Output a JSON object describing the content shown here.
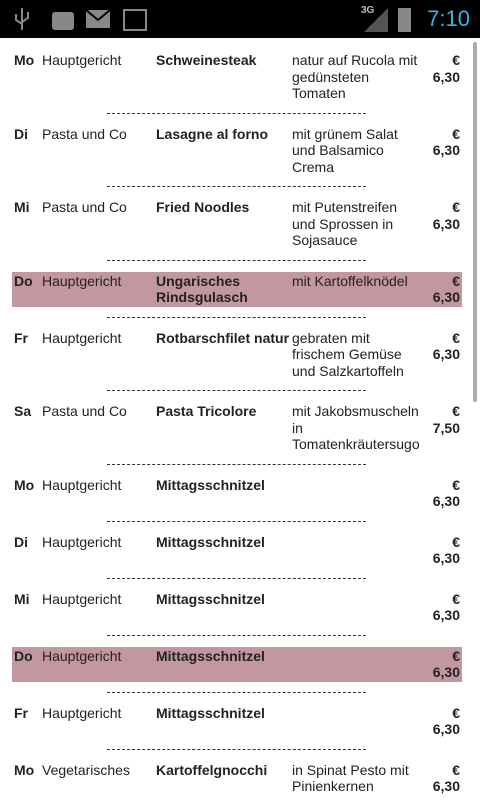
{
  "status_bar": {
    "network": "3G",
    "time": "7:10"
  },
  "menu": {
    "rows": [
      {
        "day": "Mo",
        "category": "Hauptgericht",
        "dish": "Schweinesteak",
        "description": "natur auf Rucola mit gedünsteten Tomaten",
        "currency": "€",
        "price": "6,30",
        "highlighted": false
      },
      {
        "day": "Di",
        "category": "Pasta und Co",
        "dish": "Lasagne al forno",
        "description": "mit grünem Salat und Balsamico Crema",
        "currency": "€",
        "price": "6,30",
        "highlighted": false
      },
      {
        "day": "Mi",
        "category": "Pasta und Co",
        "dish": "Fried Noodles",
        "description": "mit Putenstreifen und Sprossen in Sojasauce",
        "currency": "€",
        "price": "6,30",
        "highlighted": false
      },
      {
        "day": "Do",
        "category": "Hauptgericht",
        "dish": "Ungarisches Rindsgulasch",
        "description": "mit Kartoffelknödel",
        "currency": "€",
        "price": "6,30",
        "highlighted": true
      },
      {
        "day": "Fr",
        "category": "Hauptgericht",
        "dish": "Rotbarschfilet natur",
        "description": "gebraten mit frischem Gemüse und Salzkartoffeln",
        "currency": "€",
        "price": "6,30",
        "highlighted": false
      },
      {
        "day": "Sa",
        "category": "Pasta und Co",
        "dish": "Pasta Tricolore",
        "description": "mit Jakobsmuscheln in Tomatenkräutersugo",
        "currency": "€",
        "price": "7,50",
        "highlighted": false
      },
      {
        "day": "Mo",
        "category": "Hauptgericht",
        "dish": "Mittagsschnitzel",
        "currency": "€",
        "price": "6,30",
        "highlighted": false
      },
      {
        "day": "Di",
        "category": "Hauptgericht",
        "dish": "Mittagsschnitzel",
        "currency": "€",
        "price": "6,30",
        "highlighted": false
      },
      {
        "day": "Mi",
        "category": "Hauptgericht",
        "dish": "Mittagsschnitzel",
        "currency": "€",
        "price": "6,30",
        "highlighted": false
      },
      {
        "day": "Do",
        "category": "Hauptgericht",
        "dish": "Mittagsschnitzel",
        "currency": "€",
        "price": "6,30",
        "highlighted": true
      },
      {
        "day": "Fr",
        "category": "Hauptgericht",
        "dish": "Mittagsschnitzel",
        "currency": "€",
        "price": "6,30",
        "highlighted": false
      },
      {
        "day": "Mo",
        "category": "Vegetarisches",
        "dish": "Kartoffelgnocchi",
        "description": "in Spinat Pesto mit Pinienkernen",
        "currency": "€",
        "price": "6,30",
        "highlighted": false
      }
    ]
  }
}
